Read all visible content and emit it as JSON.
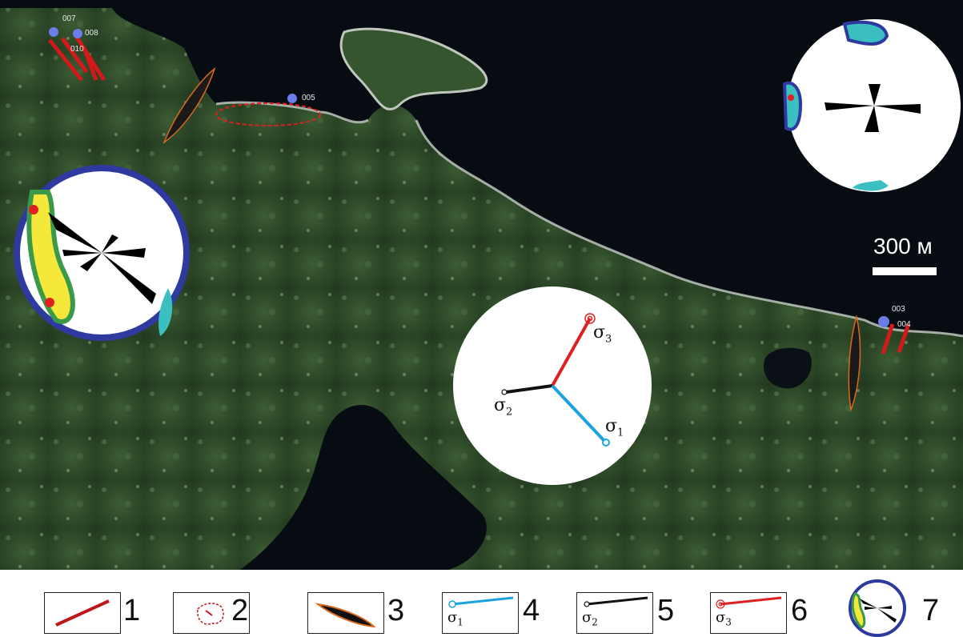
{
  "map": {
    "scale_label": "300 м",
    "station_labels": [
      "007",
      "008",
      "010",
      "005",
      "003",
      "004"
    ],
    "stress_axes": {
      "sigma1_label": "σ",
      "sigma1_sub": "1",
      "sigma2_label": "σ",
      "sigma2_sub": "2",
      "sigma3_label": "σ",
      "sigma3_sub": "3"
    }
  },
  "legend": {
    "items": [
      {
        "number": "1",
        "icon": "red-line-icon"
      },
      {
        "number": "2",
        "icon": "dashed-polygon-icon"
      },
      {
        "number": "3",
        "icon": "lens-icon"
      },
      {
        "number": "4",
        "icon": "sigma1-axis-icon",
        "sigma": "σ",
        "sub": "1"
      },
      {
        "number": "5",
        "icon": "sigma2-axis-icon",
        "sigma": "σ",
        "sub": "2"
      },
      {
        "number": "6",
        "icon": "sigma3-axis-icon",
        "sigma": "σ",
        "sub": "3"
      },
      {
        "number": "7",
        "icon": "stereonet-icon"
      }
    ]
  },
  "colors": {
    "water": "#070b12",
    "forest": "#2c4a28",
    "sigma1": "#1aa3e0",
    "sigma2": "#111111",
    "sigma3": "#e02020",
    "fault": "#d21a1a"
  }
}
